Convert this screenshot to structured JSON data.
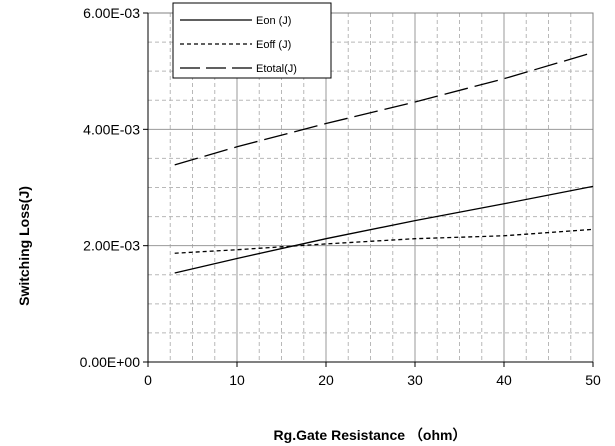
{
  "chart_data": {
    "type": "line",
    "title": "",
    "xlabel": "Rg.Gate Resistance （ohm）",
    "ylabel": "Switching Loss(J)",
    "xlim": [
      0,
      50
    ],
    "ylim": [
      0,
      0.006
    ],
    "x_ticks": [
      "0",
      "10",
      "20",
      "30",
      "40",
      "50"
    ],
    "y_ticks": [
      "0.00E+00",
      "2.00E-03",
      "4.00E-03",
      "6.00E-03"
    ],
    "grid": true,
    "legend_position": "top-left",
    "x": [
      3,
      10,
      20,
      30,
      40,
      50
    ],
    "series": [
      {
        "name": "Eon (J)",
        "style": "solid",
        "values": [
          0.00153,
          0.00178,
          0.00212,
          0.00243,
          0.00272,
          0.00302
        ]
      },
      {
        "name": "Eoff (J)",
        "style": "dashed",
        "values": [
          0.00187,
          0.00193,
          0.00203,
          0.00212,
          0.00217,
          0.00228
        ]
      },
      {
        "name": "Etotal(J)",
        "style": "longdash",
        "values": [
          0.00339,
          0.0037,
          0.0041,
          0.00447,
          0.00487,
          0.00532
        ]
      }
    ]
  }
}
